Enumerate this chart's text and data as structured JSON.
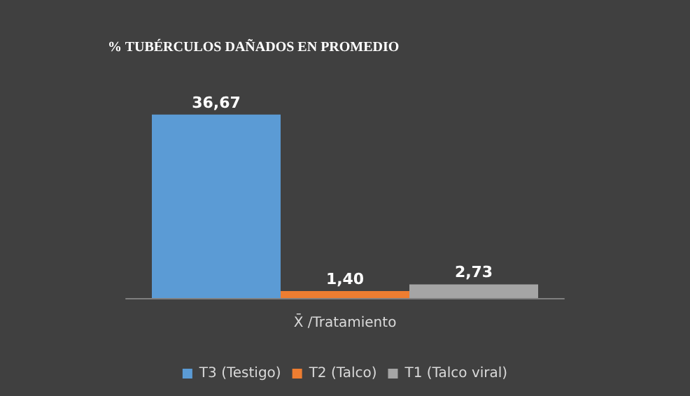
{
  "chart_data": {
    "type": "bar",
    "title": "% TUBÉRCULOS DAÑADOS EN PROMEDIO",
    "xlabel": "X̄ /Tratamiento",
    "categories": [
      null
    ],
    "series": [
      {
        "name": "T3 (Testigo)",
        "color": "#5b9bd5",
        "values": [
          36.67
        ],
        "value_labels": [
          "36,67"
        ]
      },
      {
        "name": "T2 (Talco)",
        "color": "#ed7d31",
        "values": [
          1.4
        ],
        "value_labels": [
          "1,40"
        ]
      },
      {
        "name": "T1 (Talco viral)",
        "color": "#a5a5a5",
        "values": [
          2.73
        ],
        "value_labels": [
          "2,73"
        ]
      }
    ],
    "legend": "bottom"
  }
}
